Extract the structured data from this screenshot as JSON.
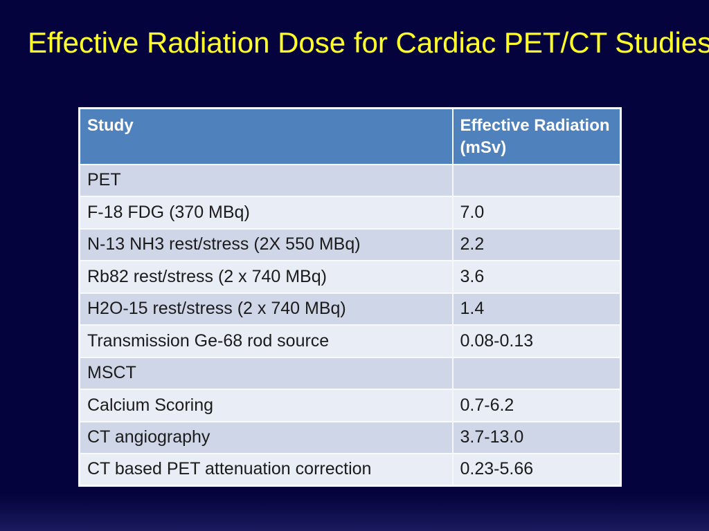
{
  "slide": {
    "title": "Effective Radiation Dose for Cardiac PET/CT Studies",
    "title_color": "#FFFF29",
    "background_color": "#04033D"
  },
  "table": {
    "header_bg": "#4F81BD",
    "band_dark": "#CED6E8",
    "band_light": "#E9EDF5",
    "grid_color": "#FFFFFF",
    "headers": [
      "Study",
      "Effective Radiation (mSv)"
    ],
    "rows": [
      {
        "study": "PET",
        "dose": ""
      },
      {
        "study": "F-18 FDG (370 MBq)",
        "dose": "7.0"
      },
      {
        "study": "N-13 NH3 rest/stress (2X 550 MBq)",
        "dose": "2.2"
      },
      {
        "study": "Rb82 rest/stress (2 x 740 MBq)",
        "dose": "3.6"
      },
      {
        "study": "H2O-15 rest/stress (2 x 740 MBq)",
        "dose": "1.4"
      },
      {
        "study": "Transmission Ge-68 rod source",
        "dose": "0.08-0.13"
      },
      {
        "study": "MSCT",
        "dose": ""
      },
      {
        "study": "Calcium Scoring",
        "dose": "0.7-6.2"
      },
      {
        "study": "CT angiography",
        "dose": "3.7-13.0"
      },
      {
        "study": "CT based PET attenuation correction",
        "dose": "0.23-5.66"
      }
    ]
  }
}
